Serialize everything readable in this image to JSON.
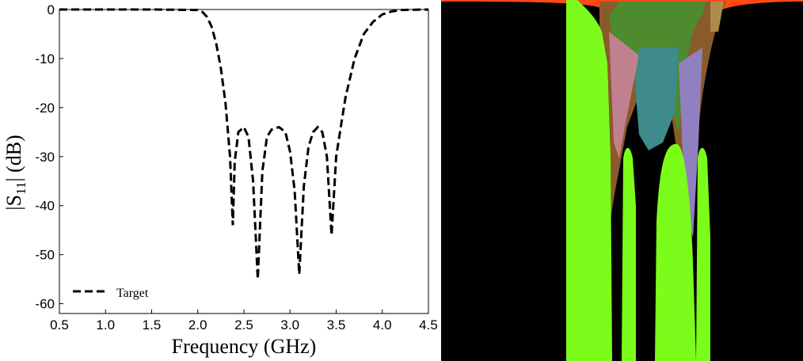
{
  "chart_data": {
    "type": "line",
    "xlabel": "Frequency (GHz)",
    "ylabel_main": "|S",
    "ylabel_sub": "11",
    "ylabel_tail": "|  (dB)",
    "xlim": [
      0.5,
      4.5
    ],
    "ylim": [
      -62,
      0
    ],
    "xticks": [
      "0.5",
      "1.0",
      "1.5",
      "2.0",
      "2.5",
      "3.0",
      "3.5",
      "4.0",
      "4.5"
    ],
    "yticks": [
      "0",
      "-10",
      "-20",
      "-30",
      "-40",
      "-50",
      "-60"
    ],
    "legend_position": "bottom-left",
    "grid": false,
    "series": [
      {
        "name": "Target",
        "style": "dashed",
        "color": "#000000",
        "x": [
          0.5,
          1.5,
          2.0,
          2.05,
          2.1,
          2.15,
          2.2,
          2.25,
          2.3,
          2.35,
          2.38,
          2.4,
          2.44,
          2.5,
          2.55,
          2.6,
          2.65,
          2.7,
          2.75,
          2.8,
          2.88,
          2.95,
          3.0,
          3.05,
          3.1,
          3.15,
          3.2,
          3.25,
          3.3,
          3.35,
          3.4,
          3.45,
          3.5,
          3.55,
          3.6,
          3.7,
          3.8,
          3.9,
          4.0,
          4.1,
          4.2,
          4.5
        ],
        "y": [
          0,
          0,
          -0.1,
          -0.5,
          -1.5,
          -3.5,
          -7,
          -12,
          -19,
          -30,
          -44,
          -31,
          -25,
          -24,
          -26,
          -35,
          -55,
          -33,
          -26,
          -24.5,
          -24,
          -25,
          -29,
          -37,
          -54,
          -36,
          -28,
          -25,
          -24,
          -25,
          -30,
          -46,
          -30,
          -24,
          -18,
          -10,
          -5,
          -2.5,
          -1,
          -0.4,
          -0.1,
          0
        ]
      }
    ]
  },
  "right_panel": {
    "colors": {
      "black": "#000000",
      "green": "#7cfc1a",
      "orange": "#ff4a14",
      "brown": "#8a5a2b",
      "olive": "#4e8a2e",
      "pink": "#c08090",
      "teal": "#3f8a8a",
      "violet": "#9080c0",
      "tan": "#b08a4a"
    }
  }
}
